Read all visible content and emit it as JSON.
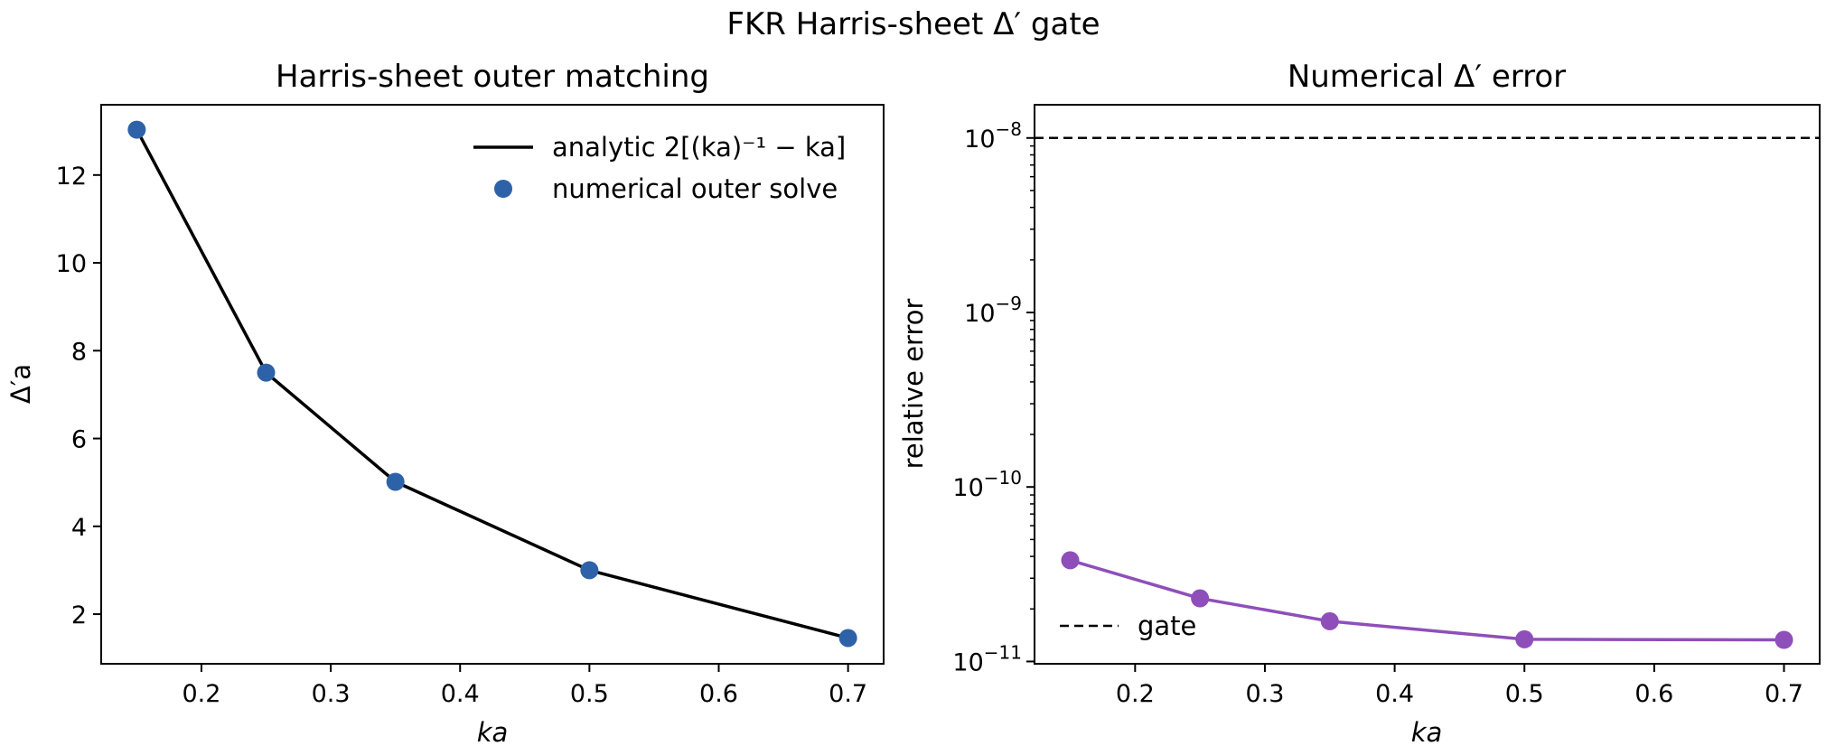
{
  "figure": {
    "suptitle": "FKR Harris-sheet Δ′ gate"
  },
  "chart_data": [
    {
      "type": "line",
      "title": "Harris-sheet outer matching",
      "xlabel": "ka",
      "ylabel": "Δ′a",
      "x": [
        0.15,
        0.25,
        0.35,
        0.5,
        0.7
      ],
      "xlim": [
        0.1225,
        0.7275
      ],
      "ylim": [
        0.87,
        13.6
      ],
      "x_ticks": [
        "0.2",
        "0.3",
        "0.4",
        "0.5",
        "0.6",
        "0.7"
      ],
      "y_ticks": [
        "2",
        "4",
        "6",
        "8",
        "10",
        "12"
      ],
      "grid": false,
      "legend_position": "top-right",
      "series": [
        {
          "name": "analytic 2[(ka)⁻¹ − ka]",
          "kind": "line",
          "color": "#000000",
          "values": [
            13.033,
            7.5,
            5.014,
            3.0,
            1.457
          ]
        },
        {
          "name": "numerical outer solve",
          "kind": "markers",
          "color": "#2e62a8",
          "values": [
            13.033,
            7.5,
            5.014,
            3.0,
            1.457
          ]
        }
      ]
    },
    {
      "type": "line",
      "title": "Numerical Δ′ error",
      "xlabel": "ka",
      "ylabel": "relative error",
      "x": [
        0.15,
        0.25,
        0.35,
        0.5,
        0.7
      ],
      "xlim": [
        0.1225,
        0.7275
      ],
      "y_scale": "log",
      "ylim": [
        9.7e-12,
        1.55e-08
      ],
      "x_ticks": [
        "0.2",
        "0.3",
        "0.4",
        "0.5",
        "0.6",
        "0.7"
      ],
      "y_ticks": [
        {
          "base": "10",
          "exp": "−8",
          "value": 1e-08
        },
        {
          "base": "10",
          "exp": "−9",
          "value": 1e-09
        },
        {
          "base": "10",
          "exp": "−10",
          "value": 1e-10
        },
        {
          "base": "10",
          "exp": "−11",
          "value": 1e-11
        }
      ],
      "grid": false,
      "legend_position": "bottom-left",
      "reference_line": {
        "name": "gate",
        "value": 1e-08,
        "style": "dashed",
        "color": "#000000"
      },
      "series": [
        {
          "name": "",
          "kind": "line+markers",
          "color": "#8e4fba",
          "values": [
            3.8e-11,
            2.3e-11,
            1.7e-11,
            1.34e-11,
            1.33e-11
          ]
        }
      ]
    }
  ]
}
